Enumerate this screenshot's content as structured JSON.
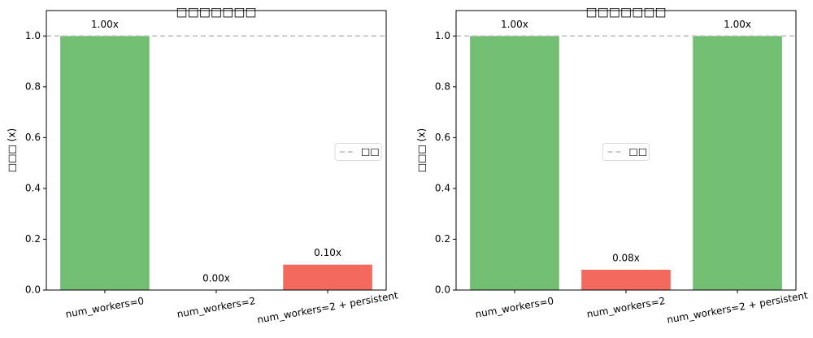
{
  "chart_data": [
    {
      "type": "bar",
      "title": "□□□□□□□",
      "y_label": "□□□ (x)",
      "categories": [
        "num_workers=0",
        "num_workers=2",
        "num_workers=2 + persistent"
      ],
      "values": [
        1.0,
        0.0,
        0.1
      ],
      "value_labels": [
        "1.00x",
        "0.00x",
        "0.10x"
      ],
      "colors": [
        "#72bf73",
        "#72bf73",
        "#f4695e"
      ],
      "ylim": [
        0,
        1.1
      ],
      "yticks": [
        {
          "value": 0,
          "label": "0.0"
        },
        {
          "value": 0.2,
          "label": "0.2"
        },
        {
          "value": 0.4,
          "label": "0.4"
        },
        {
          "value": 0.6,
          "label": "0.6"
        },
        {
          "value": 0.8,
          "label": "0.8"
        },
        {
          "value": 1,
          "label": "1.0"
        }
      ],
      "reference": {
        "value": 1,
        "name": "□□",
        "color": "#bbbbbb"
      },
      "legend": "center right"
    },
    {
      "type": "bar",
      "title": "□□□□□□□",
      "y_label": "□□□ (x)",
      "categories": [
        "num_workers=0",
        "num_workers=2",
        "num_workers=2 + persistent"
      ],
      "values": [
        1.0,
        0.08,
        1.0
      ],
      "value_labels": [
        "1.00x",
        "0.08x",
        "1.00x"
      ],
      "colors": [
        "#72bf73",
        "#f4695e",
        "#72bf73"
      ],
      "ylim": [
        0,
        1.1
      ],
      "yticks": [
        {
          "value": 0,
          "label": "0.0"
        },
        {
          "value": 0.2,
          "label": "0.2"
        },
        {
          "value": 0.4,
          "label": "0.4"
        },
        {
          "value": 0.6,
          "label": "0.6"
        },
        {
          "value": 0.8,
          "label": "0.8"
        },
        {
          "value": 1,
          "label": "1.0"
        }
      ],
      "reference": {
        "value": 1,
        "name": "□□",
        "color": "#bbbbbb"
      },
      "legend": "center"
    }
  ]
}
